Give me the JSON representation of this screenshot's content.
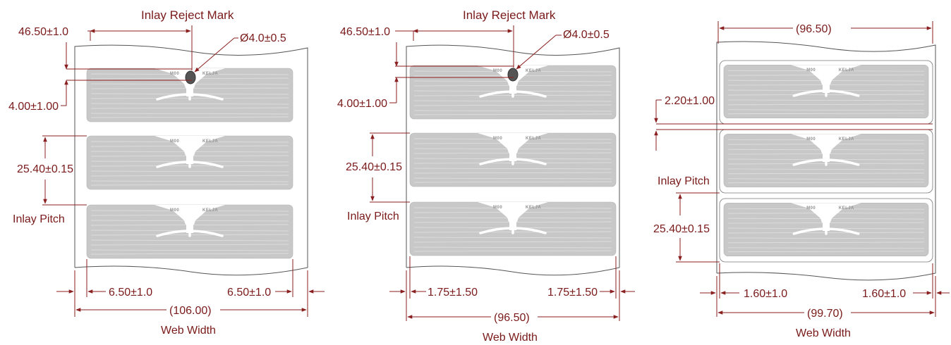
{
  "diagrams": [
    {
      "id": "left",
      "title": "Inlay Reject Mark",
      "reject_offset": "46.50±1.0",
      "mark_diameter": "Ø4.0±0.5",
      "mark_gap": "4.00±1.00",
      "pitch_value": "25.40±0.15",
      "pitch_label": "Inlay Pitch",
      "side_left": "6.50±1.0",
      "side_right": "6.50±1.0",
      "width_value": "(106.00)",
      "width_label": "Web Width"
    },
    {
      "id": "middle",
      "title": "Inlay Reject Mark",
      "reject_offset": "46.50±1.0",
      "mark_diameter": "Ø4.0±0.5",
      "mark_gap": "4.00±1.00",
      "pitch_value": "25.40±0.15",
      "pitch_label": "Inlay Pitch",
      "side_left": "1.75±1.50",
      "side_right": "1.75±1.50",
      "width_value": "(96.50)",
      "width_label": "Web Width"
    },
    {
      "id": "right",
      "label_width": "(96.50)",
      "label_gap": "2.20±1.00",
      "pitch_label": "Inlay Pitch",
      "pitch_value": "25.40±0.15",
      "side_left": "1.60±1.0",
      "side_right": "1.60±1.0",
      "width_value": "(99.70)",
      "width_label": "Web Width"
    }
  ],
  "chip_text_left": "M00",
  "chip_text_right": "KELJA",
  "colors": {
    "dimension": "#8a1f1f",
    "text": "#7a1a1a",
    "inlay": "#c8c8c8",
    "web_outline": "#555555"
  }
}
